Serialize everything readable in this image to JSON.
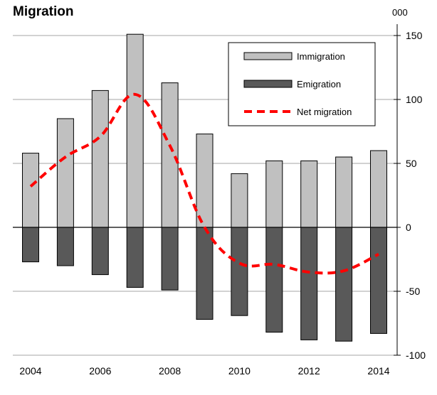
{
  "chart_data": {
    "type": "bar",
    "title": "Migration",
    "unit_label": "000",
    "x": [
      2004,
      2005,
      2006,
      2007,
      2008,
      2009,
      2010,
      2011,
      2012,
      2013,
      2014
    ],
    "x_tick_labels": [
      "2004",
      "2006",
      "2008",
      "2010",
      "2012",
      "2014"
    ],
    "y_tick_labels": [
      "150",
      "100",
      "50",
      "0",
      "-50",
      "-100"
    ],
    "ylim": [
      -100,
      150
    ],
    "y_axis_side": "right",
    "grid": true,
    "legend_position": "top-right",
    "series": [
      {
        "name": "Immigration",
        "kind": "bar",
        "color": "#c0c0c0",
        "values": [
          58,
          85,
          107,
          151,
          113,
          73,
          42,
          52,
          52,
          55,
          60
        ]
      },
      {
        "name": "Emigration",
        "kind": "bar",
        "color": "#595959",
        "values": [
          -27,
          -30,
          -37,
          -47,
          -49,
          -72,
          -69,
          -82,
          -88,
          -89,
          -83
        ]
      },
      {
        "name": "Net migration",
        "kind": "line",
        "style": "dashed",
        "color": "#ff0000",
        "values": [
          32,
          55,
          71,
          104,
          64,
          0,
          -28,
          -29,
          -35,
          -34,
          -21
        ]
      }
    ]
  }
}
